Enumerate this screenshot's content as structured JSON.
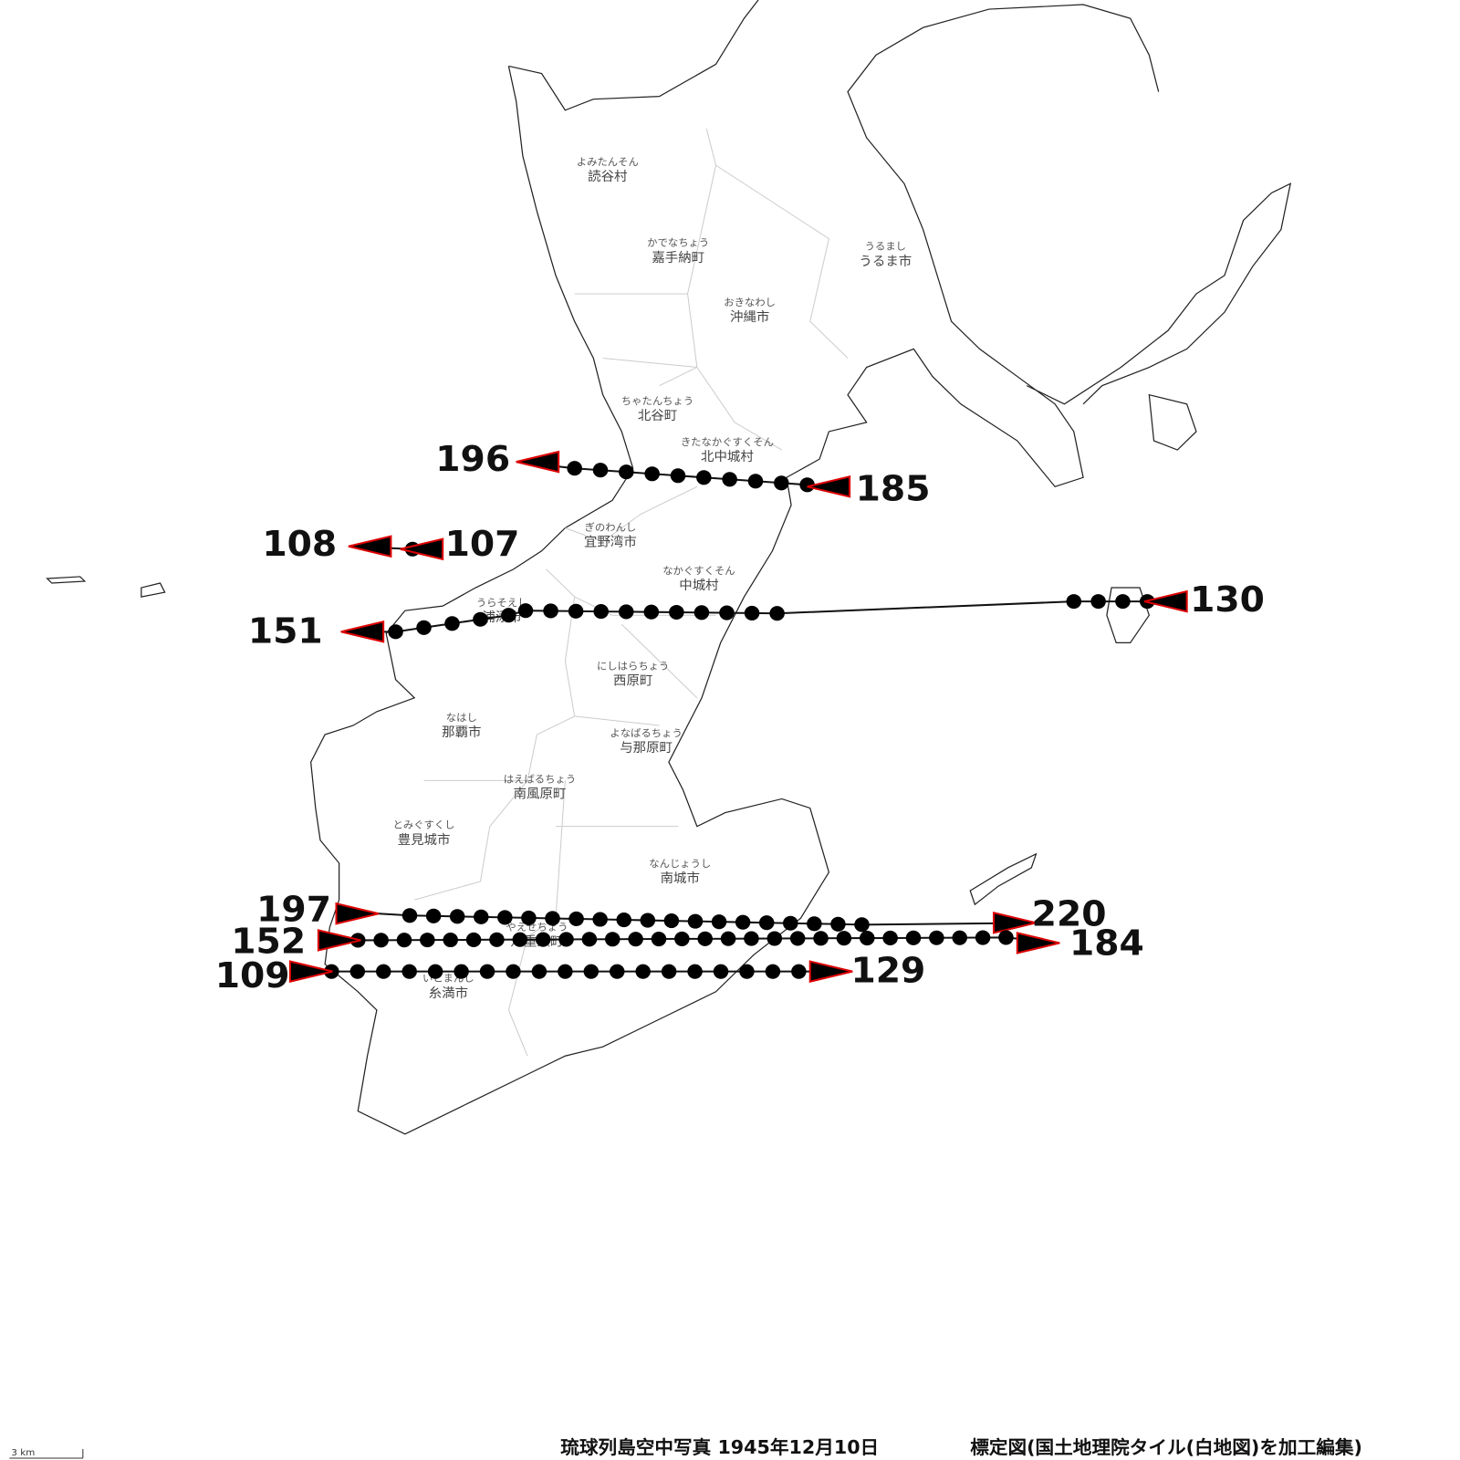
{
  "places": [
    {
      "kana": "よみたんそん",
      "name": "読谷村"
    },
    {
      "kana": "かでなちょう",
      "name": "嘉手納町"
    },
    {
      "kana": "うるまし",
      "name": "うるま市"
    },
    {
      "kana": "おきなわし",
      "name": "沖縄市"
    },
    {
      "kana": "ちゃたんちょう",
      "name": "北谷町"
    },
    {
      "kana": "きたなかぐすくそん",
      "name": "北中城村"
    },
    {
      "kana": "ぎのわんし",
      "name": "宜野湾市"
    },
    {
      "kana": "なかぐすくそん",
      "name": "中城村"
    },
    {
      "kana": "うらそえし",
      "name": "浦添市"
    },
    {
      "kana": "にしはらちょう",
      "name": "西原町"
    },
    {
      "kana": "なはし",
      "name": "那覇市"
    },
    {
      "kana": "よなばるちょう",
      "name": "与那原町"
    },
    {
      "kana": "はえばるちょう",
      "name": "南風原町"
    },
    {
      "kana": "とみぐすくし",
      "name": "豊見城市"
    },
    {
      "kana": "なんじょうし",
      "name": "南城市"
    },
    {
      "kana": "やえせちょう",
      "name": "八重瀬町"
    },
    {
      "kana": "いとまんし",
      "name": "糸満市"
    }
  ],
  "flights": [
    {
      "start": "196",
      "end": "185"
    },
    {
      "start": "108",
      "end": "107"
    },
    {
      "start": "151",
      "end": "130"
    },
    {
      "start": "197",
      "end": "220"
    },
    {
      "start": "152",
      "end": "184"
    },
    {
      "start": "109",
      "end": "129"
    }
  ],
  "footer": {
    "title": "琉球列島空中写真 1945年12月10日",
    "credit": "標定図(国土地理院タイル(白地図)を加工編集)",
    "scale": "3 km"
  }
}
